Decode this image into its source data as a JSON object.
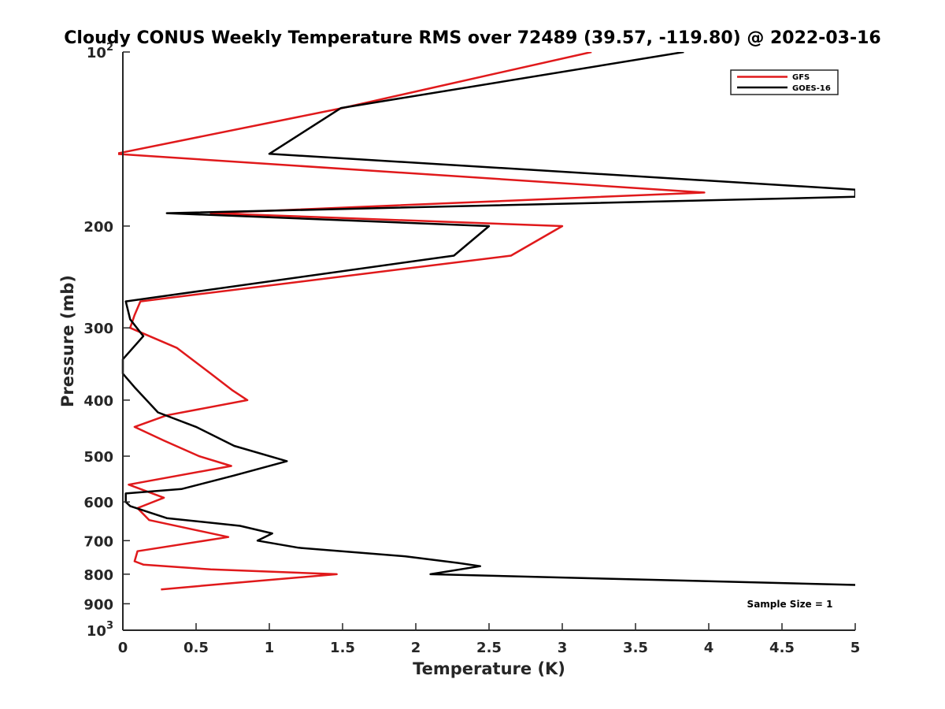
{
  "chart_data": {
    "type": "line",
    "title": "Cloudy CONUS Weekly Temperature RMS over 72489 (39.57, -119.80) @ 2022-03-16",
    "xlabel": "Temperature (K)",
    "ylabel": "Pressure (mb)",
    "xlim": [
      0,
      5
    ],
    "ylim": [
      100,
      1000
    ],
    "y_scale": "log",
    "y_reversed": true,
    "x_ticks": [
      "0",
      "0.5",
      "1",
      "1.5",
      "2",
      "2.5",
      "3",
      "3.5",
      "4",
      "4.5",
      "5"
    ],
    "x_tick_values": [
      0,
      0.5,
      1,
      1.5,
      2,
      2.5,
      3,
      3.5,
      4,
      4.5,
      5
    ],
    "y_ticks": [
      {
        "value": 100,
        "label": "10",
        "sup": "2"
      },
      {
        "value": 200,
        "label": "200",
        "sup": ""
      },
      {
        "value": 300,
        "label": "300",
        "sup": ""
      },
      {
        "value": 400,
        "label": "400",
        "sup": ""
      },
      {
        "value": 500,
        "label": "500",
        "sup": ""
      },
      {
        "value": 600,
        "label": "600",
        "sup": ""
      },
      {
        "value": 700,
        "label": "700",
        "sup": ""
      },
      {
        "value": 800,
        "label": "800",
        "sup": ""
      },
      {
        "value": 900,
        "label": "900",
        "sup": ""
      },
      {
        "value": 1000,
        "label": "10",
        "sup": "3"
      }
    ],
    "grid": false,
    "legend_position": "top-right",
    "annotation": "Sample Size = 1",
    "series": [
      {
        "name": "GFS",
        "color": "#e0191b",
        "points": [
          [
            3.2,
            100
          ],
          [
            1.5,
            125
          ],
          [
            -0.05,
            150
          ],
          [
            3.97,
            175
          ],
          [
            0.6,
            190
          ],
          [
            3.0,
            200
          ],
          [
            2.65,
            225
          ],
          [
            0.12,
            270
          ],
          [
            0.08,
            285
          ],
          [
            0.05,
            300
          ],
          [
            0.37,
            325
          ],
          [
            0.6,
            360
          ],
          [
            0.75,
            385
          ],
          [
            0.85,
            400
          ],
          [
            0.3,
            425
          ],
          [
            0.08,
            445
          ],
          [
            0.28,
            470
          ],
          [
            0.52,
            500
          ],
          [
            0.74,
            520
          ],
          [
            0.04,
            560
          ],
          [
            0.28,
            590
          ],
          [
            0.1,
            615
          ],
          [
            0.18,
            645
          ],
          [
            0.72,
            690
          ],
          [
            0.1,
            730
          ],
          [
            0.08,
            760
          ],
          [
            0.14,
            770
          ],
          [
            0.6,
            785
          ],
          [
            1.46,
            800
          ],
          [
            0.72,
            830
          ],
          [
            0.26,
            850
          ]
        ]
      },
      {
        "name": "GOES-16",
        "color": "#000000",
        "points": [
          [
            3.83,
            100
          ],
          [
            1.49,
            125
          ],
          [
            1.0,
            150
          ],
          [
            5.0,
            173
          ],
          [
            5.0,
            178
          ],
          [
            0.3,
            190
          ],
          [
            2.5,
            200
          ],
          [
            2.26,
            225
          ],
          [
            0.02,
            270
          ],
          [
            0.05,
            290
          ],
          [
            0.14,
            310
          ],
          [
            0.0,
            340
          ],
          [
            0.0,
            360
          ],
          [
            0.08,
            380
          ],
          [
            0.24,
            420
          ],
          [
            0.5,
            445
          ],
          [
            0.76,
            480
          ],
          [
            1.12,
            510
          ],
          [
            0.76,
            540
          ],
          [
            0.4,
            570
          ],
          [
            0.02,
            580
          ],
          [
            0.02,
            600
          ],
          [
            0.05,
            610
          ],
          [
            0.3,
            640
          ],
          [
            0.8,
            660
          ],
          [
            1.02,
            680
          ],
          [
            0.92,
            700
          ],
          [
            1.2,
            720
          ],
          [
            1.93,
            745
          ],
          [
            2.29,
            765
          ],
          [
            2.44,
            775
          ],
          [
            2.1,
            800
          ],
          [
            5.0,
            835
          ]
        ]
      }
    ]
  }
}
